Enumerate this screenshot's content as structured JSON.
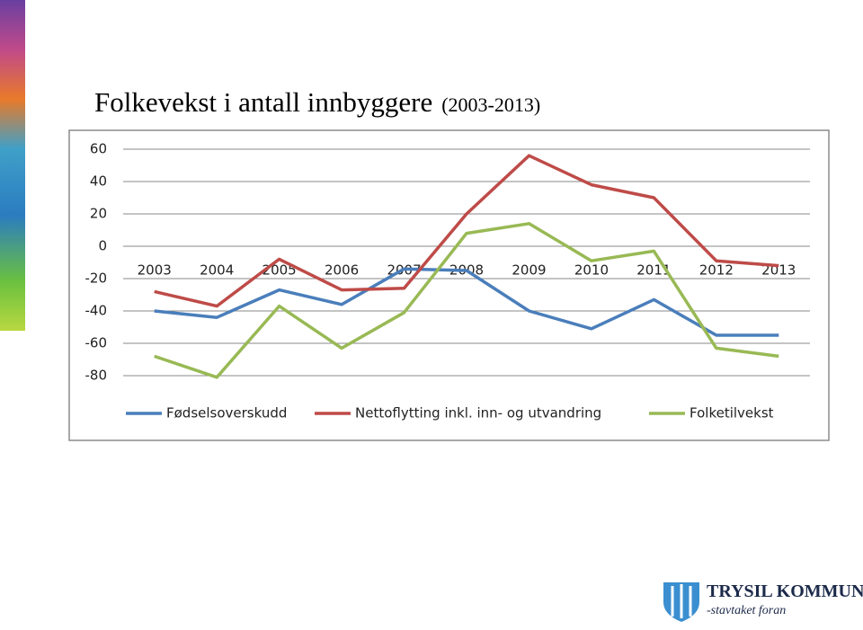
{
  "title": "Folkevekst i antall innbyggere",
  "subtitle": "(2003-2013)",
  "logo": {
    "name": "TRYSIL KOMMUNE",
    "slogan": "-stavtaket foran"
  },
  "chart_data": {
    "type": "line",
    "categories": [
      "2003",
      "2004",
      "2005",
      "2006",
      "2007",
      "2008",
      "2009",
      "2010",
      "2011",
      "2012",
      "2013"
    ],
    "series": [
      {
        "name": "Fødselsoverskudd",
        "color": "#4a7ebb",
        "values": [
          -40,
          -44,
          -27,
          -36,
          -14,
          -15,
          -40,
          -51,
          -33,
          -55,
          -55
        ]
      },
      {
        "name": "Nettoflytting inkl. inn- og utvandring",
        "color": "#be4b48",
        "values": [
          -28,
          -37,
          -8,
          -27,
          -26,
          20,
          56,
          38,
          30,
          -9,
          -12
        ]
      },
      {
        "name": "Folketilvekst",
        "color": "#98b954",
        "values": [
          -68,
          -81,
          -37,
          -63,
          -41,
          8,
          14,
          -9,
          -3,
          -63,
          -68
        ]
      }
    ],
    "ylim": [
      -80,
      60
    ],
    "yticks": [
      -80,
      -60,
      -40,
      -20,
      0,
      20,
      40,
      60
    ],
    "grid": true,
    "legend": "bottom"
  }
}
